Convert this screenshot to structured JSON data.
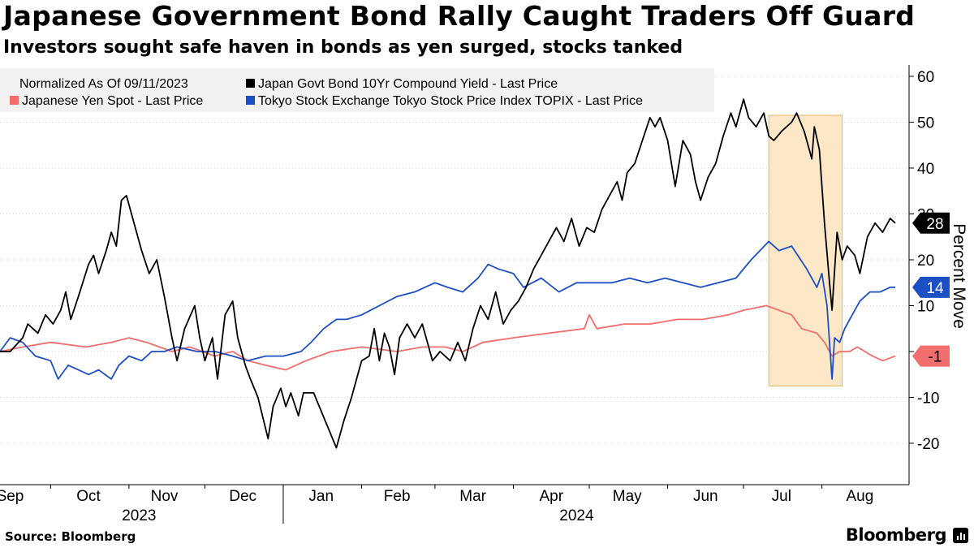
{
  "header": {
    "title": "Japanese Government Bond Rally Caught Traders Off Guard",
    "subtitle": "Investors sought safe haven in bonds as yen surged, stocks tanked"
  },
  "footer": {
    "source": "Source: Bloomberg",
    "brand": "Bloomberg"
  },
  "colors": {
    "jgb": "#000000",
    "yen": "#f06e6b",
    "topix": "#1d4fc4",
    "highlight_fill": "#fbe3bd",
    "highlight_stroke": "#e8b464",
    "legend_bg": "#f2f2f2",
    "grid": "#d0d0d0"
  },
  "chart_data": {
    "type": "line",
    "title": "Japanese Government Bond Rally Caught Traders Off Guard",
    "subtitle": "Investors sought safe haven in bonds as yen surged, stocks tanked",
    "ylabel": "Percent Move",
    "ylim": [
      -28,
      62
    ],
    "y_ticks": [
      60,
      50,
      40,
      30,
      20,
      10,
      0,
      -10,
      -20
    ],
    "y_tick_labels": [
      "60",
      "50",
      "40",
      "30",
      "20",
      "10",
      "",
      "-10",
      "-20"
    ],
    "y_axis_side": "right",
    "xlim": [
      "2023-09-11",
      "2024-08-30"
    ],
    "x_tick_labels": [
      {
        "label": "Sep",
        "date": "2023-09-15"
      },
      {
        "label": "Oct",
        "date": "2023-10-16"
      },
      {
        "label": "Nov",
        "date": "2023-11-15"
      },
      {
        "label": "Dec",
        "date": "2023-12-16"
      },
      {
        "label": "Jan",
        "date": "2024-01-16"
      },
      {
        "label": "Feb",
        "date": "2024-02-15"
      },
      {
        "label": "Mar",
        "date": "2024-03-16"
      },
      {
        "label": "Apr",
        "date": "2024-04-16"
      },
      {
        "label": "May",
        "date": "2024-05-16"
      },
      {
        "label": "Jun",
        "date": "2024-06-16"
      },
      {
        "label": "Jul",
        "date": "2024-07-16"
      },
      {
        "label": "Aug",
        "date": "2024-08-16"
      }
    ],
    "year_labels": [
      {
        "label": "2023",
        "date": "2023-11-05"
      },
      {
        "label": "2024",
        "date": "2024-04-26"
      }
    ],
    "legend_note": "Normalized As Of 09/11/2023",
    "legend_placement": "top-left",
    "grid": "horizontal dashed",
    "highlight": {
      "x_start": "2024-07-11",
      "x_end": "2024-08-09",
      "y_start": -7.5,
      "y_end": 51.5
    },
    "series": [
      {
        "name": "Japan Govt Bond 10Yr Compound Yield - Last Price",
        "key": "jgb",
        "end_label": "28",
        "points": [
          [
            "2023-09-11",
            0
          ],
          [
            "2023-09-15",
            0
          ],
          [
            "2023-09-20",
            3
          ],
          [
            "2023-09-22",
            6
          ],
          [
            "2023-09-26",
            4
          ],
          [
            "2023-09-29",
            8
          ],
          [
            "2023-10-02",
            6
          ],
          [
            "2023-10-05",
            9
          ],
          [
            "2023-10-07",
            13
          ],
          [
            "2023-10-09",
            7
          ],
          [
            "2023-10-12",
            12
          ],
          [
            "2023-10-16",
            19
          ],
          [
            "2023-10-18",
            21
          ],
          [
            "2023-10-20",
            17
          ],
          [
            "2023-10-23",
            22
          ],
          [
            "2023-10-25",
            26
          ],
          [
            "2023-10-27",
            23
          ],
          [
            "2023-10-29",
            33
          ],
          [
            "2023-10-31",
            34
          ],
          [
            "2023-11-03",
            28
          ],
          [
            "2023-11-06",
            22
          ],
          [
            "2023-11-09",
            17
          ],
          [
            "2023-11-12",
            20
          ],
          [
            "2023-11-15",
            12
          ],
          [
            "2023-11-18",
            3
          ],
          [
            "2023-11-20",
            -2
          ],
          [
            "2023-11-23",
            5
          ],
          [
            "2023-11-27",
            10
          ],
          [
            "2023-11-29",
            3
          ],
          [
            "2023-12-01",
            -2
          ],
          [
            "2023-12-04",
            3
          ],
          [
            "2023-12-06",
            -6
          ],
          [
            "2023-12-09",
            8
          ],
          [
            "2023-12-12",
            11
          ],
          [
            "2023-12-14",
            3
          ],
          [
            "2023-12-17",
            -3
          ],
          [
            "2023-12-19",
            -6
          ],
          [
            "2023-12-22",
            -10
          ],
          [
            "2023-12-26",
            -19
          ],
          [
            "2023-12-28",
            -12
          ],
          [
            "2023-12-31",
            -8
          ],
          [
            "2024-01-02",
            -12
          ],
          [
            "2024-01-04",
            -9
          ],
          [
            "2024-01-07",
            -14
          ],
          [
            "2024-01-09",
            -9
          ],
          [
            "2024-01-13",
            -9
          ],
          [
            "2024-01-16",
            -13
          ],
          [
            "2024-01-19",
            -17
          ],
          [
            "2024-01-22",
            -21
          ],
          [
            "2024-01-25",
            -15
          ],
          [
            "2024-01-28",
            -10
          ],
          [
            "2024-01-30",
            -6
          ],
          [
            "2024-02-01",
            -2
          ],
          [
            "2024-02-04",
            -1
          ],
          [
            "2024-02-06",
            5
          ],
          [
            "2024-02-08",
            -2
          ],
          [
            "2024-02-10",
            4
          ],
          [
            "2024-02-12",
            1
          ],
          [
            "2024-02-14",
            -5
          ],
          [
            "2024-02-16",
            3
          ],
          [
            "2024-02-19",
            6
          ],
          [
            "2024-02-22",
            3
          ],
          [
            "2024-02-25",
            6
          ],
          [
            "2024-02-27",
            2
          ],
          [
            "2024-02-29",
            -2
          ],
          [
            "2024-03-03",
            0
          ],
          [
            "2024-03-07",
            -2
          ],
          [
            "2024-03-10",
            2
          ],
          [
            "2024-03-13",
            -2
          ],
          [
            "2024-03-16",
            5
          ],
          [
            "2024-03-19",
            10
          ],
          [
            "2024-03-22",
            7
          ],
          [
            "2024-03-25",
            13
          ],
          [
            "2024-03-28",
            6
          ],
          [
            "2024-03-31",
            9
          ],
          [
            "2024-04-03",
            11
          ],
          [
            "2024-04-06",
            14
          ],
          [
            "2024-04-09",
            18
          ],
          [
            "2024-04-12",
            21
          ],
          [
            "2024-04-15",
            24
          ],
          [
            "2024-04-18",
            27
          ],
          [
            "2024-04-21",
            24
          ],
          [
            "2024-04-24",
            29
          ],
          [
            "2024-04-27",
            23
          ],
          [
            "2024-04-30",
            27
          ],
          [
            "2024-05-03",
            26
          ],
          [
            "2024-05-06",
            31
          ],
          [
            "2024-05-09",
            34
          ],
          [
            "2024-05-12",
            37
          ],
          [
            "2024-05-14",
            33
          ],
          [
            "2024-05-16",
            39
          ],
          [
            "2024-05-19",
            41
          ],
          [
            "2024-05-22",
            46
          ],
          [
            "2024-05-25",
            51
          ],
          [
            "2024-05-27",
            49
          ],
          [
            "2024-05-29",
            51
          ],
          [
            "2024-06-01",
            46
          ],
          [
            "2024-06-04",
            36
          ],
          [
            "2024-06-07",
            46
          ],
          [
            "2024-06-10",
            43
          ],
          [
            "2024-06-12",
            37
          ],
          [
            "2024-06-14",
            33
          ],
          [
            "2024-06-17",
            38
          ],
          [
            "2024-06-20",
            41
          ],
          [
            "2024-06-23",
            47
          ],
          [
            "2024-06-26",
            52
          ],
          [
            "2024-06-28",
            49
          ],
          [
            "2024-07-01",
            55
          ],
          [
            "2024-07-03",
            51
          ],
          [
            "2024-07-06",
            49
          ],
          [
            "2024-07-09",
            52
          ],
          [
            "2024-07-11",
            47
          ],
          [
            "2024-07-13",
            46
          ],
          [
            "2024-07-16",
            48
          ],
          [
            "2024-07-20",
            50
          ],
          [
            "2024-07-22",
            52
          ],
          [
            "2024-07-25",
            48
          ],
          [
            "2024-07-28",
            42
          ],
          [
            "2024-07-29",
            49
          ],
          [
            "2024-07-31",
            44
          ],
          [
            "2024-08-02",
            28
          ],
          [
            "2024-08-04",
            15
          ],
          [
            "2024-08-05",
            9
          ],
          [
            "2024-08-07",
            26
          ],
          [
            "2024-08-09",
            20
          ],
          [
            "2024-08-11",
            23
          ],
          [
            "2024-08-14",
            21
          ],
          [
            "2024-08-16",
            17
          ],
          [
            "2024-08-19",
            25
          ],
          [
            "2024-08-22",
            28
          ],
          [
            "2024-08-25",
            26
          ],
          [
            "2024-08-28",
            29
          ],
          [
            "2024-08-30",
            28
          ]
        ]
      },
      {
        "name": "Japanese Yen Spot - Last Price",
        "key": "yen",
        "end_label": "-1",
        "points": [
          [
            "2023-09-11",
            0
          ],
          [
            "2023-09-20",
            1
          ],
          [
            "2023-10-01",
            2
          ],
          [
            "2023-10-15",
            1
          ],
          [
            "2023-10-25",
            2
          ],
          [
            "2023-11-01",
            3
          ],
          [
            "2023-11-08",
            2
          ],
          [
            "2023-11-13",
            1
          ],
          [
            "2023-11-18",
            0
          ],
          [
            "2023-11-25",
            1
          ],
          [
            "2023-12-05",
            -1
          ],
          [
            "2023-12-12",
            0
          ],
          [
            "2023-12-18",
            -2
          ],
          [
            "2023-12-25",
            -3
          ],
          [
            "2024-01-02",
            -4
          ],
          [
            "2024-01-10",
            -2
          ],
          [
            "2024-01-20",
            0
          ],
          [
            "2024-02-01",
            1
          ],
          [
            "2024-02-15",
            0
          ],
          [
            "2024-02-25",
            1
          ],
          [
            "2024-03-05",
            1
          ],
          [
            "2024-03-12",
            0
          ],
          [
            "2024-03-20",
            2
          ],
          [
            "2024-04-01",
            3
          ],
          [
            "2024-04-15",
            4
          ],
          [
            "2024-04-29",
            5
          ],
          [
            "2024-05-01",
            8
          ],
          [
            "2024-05-04",
            5
          ],
          [
            "2024-05-15",
            6
          ],
          [
            "2024-05-25",
            6
          ],
          [
            "2024-06-05",
            7
          ],
          [
            "2024-06-15",
            7
          ],
          [
            "2024-06-25",
            8
          ],
          [
            "2024-07-01",
            9
          ],
          [
            "2024-07-10",
            10
          ],
          [
            "2024-07-15",
            9
          ],
          [
            "2024-07-20",
            8
          ],
          [
            "2024-07-24",
            5
          ],
          [
            "2024-07-30",
            4
          ],
          [
            "2024-08-02",
            2
          ],
          [
            "2024-08-05",
            -1
          ],
          [
            "2024-08-08",
            0
          ],
          [
            "2024-08-12",
            0
          ],
          [
            "2024-08-15",
            1
          ],
          [
            "2024-08-18",
            0
          ],
          [
            "2024-08-21",
            -1
          ],
          [
            "2024-08-25",
            -2
          ],
          [
            "2024-08-30",
            -1
          ]
        ]
      },
      {
        "name": "Tokyo Stock Exchange Tokyo Stock Price Index TOPIX - Last Price",
        "key": "topix",
        "end_label": "14",
        "points": [
          [
            "2023-09-11",
            0
          ],
          [
            "2023-09-15",
            3
          ],
          [
            "2023-09-20",
            2
          ],
          [
            "2023-09-25",
            -1
          ],
          [
            "2023-10-01",
            -2
          ],
          [
            "2023-10-04",
            -6
          ],
          [
            "2023-10-08",
            -3
          ],
          [
            "2023-10-12",
            -4
          ],
          [
            "2023-10-16",
            -5
          ],
          [
            "2023-10-20",
            -4
          ],
          [
            "2023-10-25",
            -6
          ],
          [
            "2023-10-28",
            -3
          ],
          [
            "2023-11-01",
            -1
          ],
          [
            "2023-11-06",
            -2
          ],
          [
            "2023-11-10",
            0
          ],
          [
            "2023-11-15",
            0
          ],
          [
            "2023-11-20",
            1
          ],
          [
            "2023-11-28",
            0
          ],
          [
            "2023-12-05",
            0
          ],
          [
            "2023-12-12",
            -1
          ],
          [
            "2023-12-18",
            -2
          ],
          [
            "2023-12-25",
            -1
          ],
          [
            "2024-01-01",
            -1
          ],
          [
            "2024-01-08",
            0
          ],
          [
            "2024-01-12",
            2
          ],
          [
            "2024-01-17",
            5
          ],
          [
            "2024-01-22",
            7
          ],
          [
            "2024-01-26",
            7
          ],
          [
            "2024-02-01",
            8
          ],
          [
            "2024-02-08",
            10
          ],
          [
            "2024-02-15",
            12
          ],
          [
            "2024-02-22",
            13
          ],
          [
            "2024-03-01",
            15
          ],
          [
            "2024-03-06",
            14
          ],
          [
            "2024-03-12",
            13
          ],
          [
            "2024-03-18",
            16
          ],
          [
            "2024-03-22",
            19
          ],
          [
            "2024-03-26",
            18
          ],
          [
            "2024-04-01",
            17
          ],
          [
            "2024-04-05",
            14
          ],
          [
            "2024-04-12",
            16
          ],
          [
            "2024-04-19",
            13
          ],
          [
            "2024-04-26",
            15
          ],
          [
            "2024-05-03",
            15
          ],
          [
            "2024-05-10",
            15
          ],
          [
            "2024-05-17",
            16
          ],
          [
            "2024-05-24",
            15
          ],
          [
            "2024-05-31",
            16
          ],
          [
            "2024-06-07",
            15
          ],
          [
            "2024-06-14",
            14
          ],
          [
            "2024-06-21",
            15
          ],
          [
            "2024-06-28",
            16
          ],
          [
            "2024-07-04",
            20
          ],
          [
            "2024-07-11",
            24
          ],
          [
            "2024-07-15",
            22
          ],
          [
            "2024-07-20",
            23
          ],
          [
            "2024-07-26",
            18
          ],
          [
            "2024-07-30",
            14
          ],
          [
            "2024-08-01",
            17
          ],
          [
            "2024-08-03",
            10
          ],
          [
            "2024-08-05",
            -6
          ],
          [
            "2024-08-06",
            3
          ],
          [
            "2024-08-08",
            2
          ],
          [
            "2024-08-10",
            5
          ],
          [
            "2024-08-13",
            8
          ],
          [
            "2024-08-16",
            11
          ],
          [
            "2024-08-20",
            13
          ],
          [
            "2024-08-24",
            13
          ],
          [
            "2024-08-28",
            14
          ],
          [
            "2024-08-30",
            14
          ]
        ]
      }
    ]
  }
}
